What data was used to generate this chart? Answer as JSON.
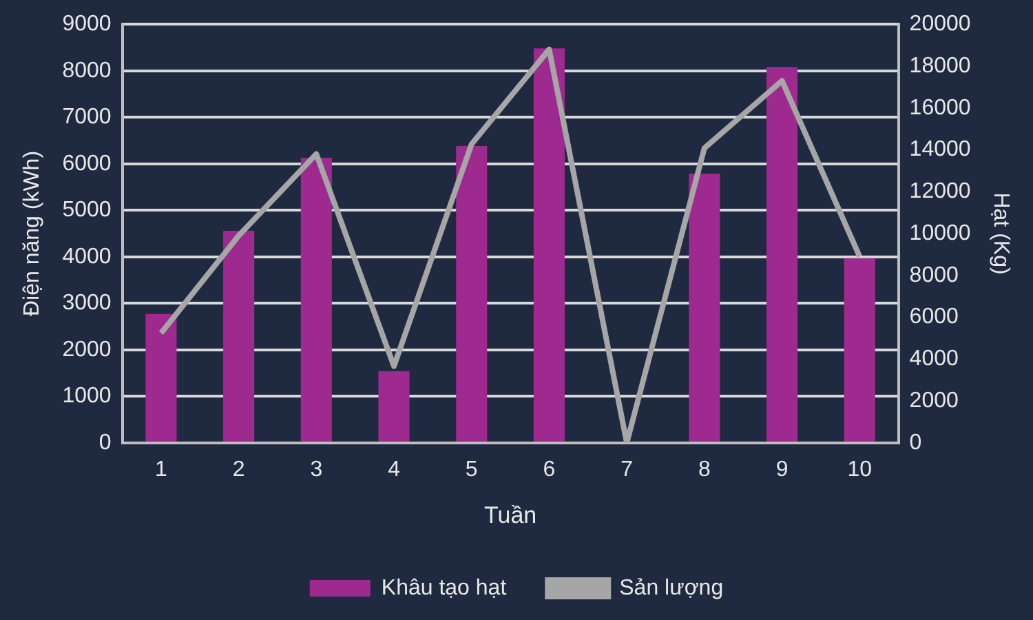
{
  "chart_data": {
    "type": "bar",
    "xlabel": "Tuần",
    "ylabel": "Điện năng (kWh)",
    "y2label": "Hạt (Kg)",
    "categories": [
      "1",
      "2",
      "3",
      "4",
      "5",
      "6",
      "7",
      "8",
      "9",
      "10"
    ],
    "series": [
      {
        "name": "Khâu tạo hạt",
        "color": "#9e2a8f",
        "values": [
          2770,
          4560,
          6130,
          1540,
          6380,
          8480,
          null,
          5790,
          8080,
          3970
        ]
      },
      {
        "name": "Sản lượng",
        "type": "line",
        "axis": "y2",
        "color": "#a6a6a6",
        "values": [
          5240,
          9900,
          13800,
          3660,
          14270,
          18800,
          0,
          14080,
          17300,
          8900
        ]
      }
    ],
    "ylim": [
      0,
      9000
    ],
    "yticks": [
      0,
      1000,
      2000,
      3000,
      4000,
      5000,
      6000,
      7000,
      8000,
      9000
    ],
    "y2lim": [
      0,
      20000
    ],
    "y2ticks": [
      0,
      2000,
      4000,
      6000,
      8000,
      10000,
      12000,
      14000,
      16000,
      18000,
      20000
    ],
    "grid": "y",
    "legend": "bottom",
    "marker": "none"
  }
}
